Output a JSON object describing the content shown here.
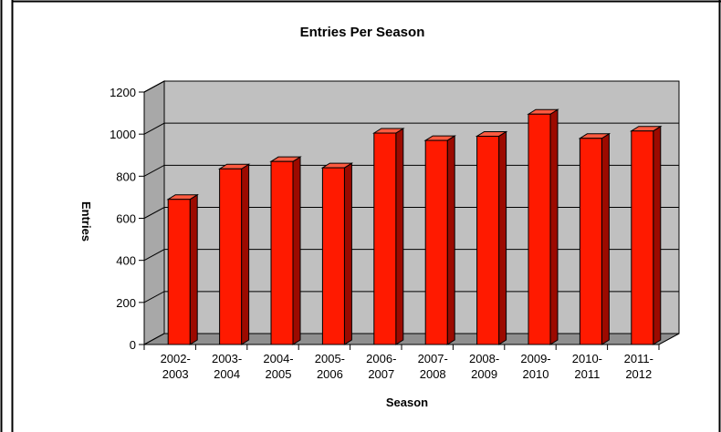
{
  "chart_data": {
    "type": "bar",
    "title": "Entries Per Season",
    "xlabel": "Season",
    "ylabel": "Entries",
    "ylim": [
      0,
      1200
    ],
    "yticks": [
      0,
      200,
      400,
      600,
      800,
      1000,
      1200
    ],
    "categories": [
      [
        "2002-",
        "2003"
      ],
      [
        "2003-",
        "2004"
      ],
      [
        "2004-",
        "2005"
      ],
      [
        "2005-",
        "2006"
      ],
      [
        "2006-",
        "2007"
      ],
      [
        "2007-",
        "2008"
      ],
      [
        "2008-",
        "2009"
      ],
      [
        "2009-",
        "2010"
      ],
      [
        "2010-",
        "2011"
      ],
      [
        "2011-",
        "2012"
      ]
    ],
    "values": [
      690,
      835,
      870,
      840,
      1005,
      970,
      990,
      1095,
      980,
      1015
    ],
    "grid": true,
    "style": "3d",
    "colors": {
      "bar_front": "#ff1a00",
      "bar_side": "#9c0a00",
      "bar_top": "#ff5a40",
      "plot_bg": "#c0c0c0",
      "floor": "#8f8f8f"
    }
  }
}
